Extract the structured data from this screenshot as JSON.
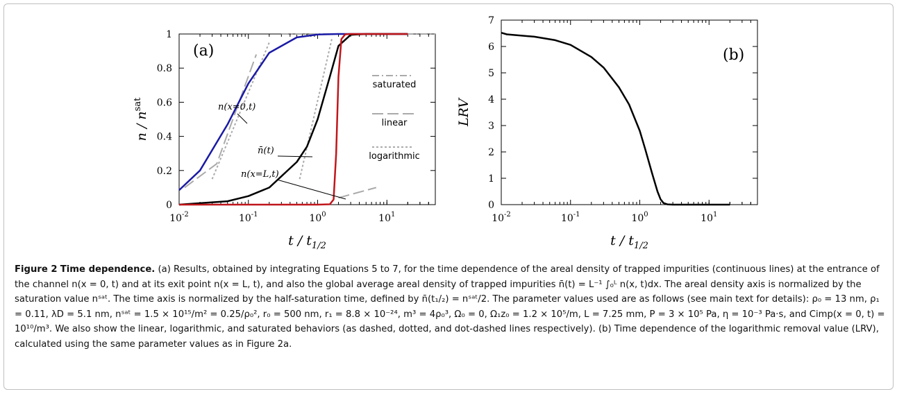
{
  "chart_data": [
    {
      "panel_label": "(a)",
      "type": "line",
      "x_scale": "log",
      "xlim": [
        0.01,
        50
      ],
      "ylim": [
        0,
        1
      ],
      "xlabel": "t / t1/2",
      "ylabel": "n / n^sat",
      "x_tick_labels": [
        "10-2",
        "10-1",
        "100",
        "101"
      ],
      "y_tick_labels": [
        "0",
        "0.2",
        "0.4",
        "0.6",
        "0.8",
        "1"
      ],
      "legend": [
        {
          "label": "saturated",
          "style": "dot-dashed"
        },
        {
          "label": "linear",
          "style": "dashed"
        },
        {
          "label": "logarithmic",
          "style": "dotted"
        }
      ],
      "annotations": [
        "n(x=0,t)",
        "n̄(t)",
        "n(x=L,t)"
      ],
      "series": [
        {
          "color": "#1a1aa6",
          "x": [
            0.01,
            0.02,
            0.05,
            0.1,
            0.2,
            0.5,
            1,
            2,
            5,
            20
          ],
          "values": [
            0.085,
            0.2,
            0.47,
            0.71,
            0.89,
            0.98,
            0.997,
            1,
            1,
            1
          ]
        },
        {
          "color": "#000000",
          "x": [
            0.01,
            0.05,
            0.1,
            0.2,
            0.5,
            0.7,
            1,
            1.5,
            2,
            3,
            5,
            20
          ],
          "values": [
            0.0,
            0.02,
            0.05,
            0.1,
            0.25,
            0.34,
            0.5,
            0.75,
            0.93,
            0.995,
            1,
            1
          ]
        },
        {
          "color": "#c0161b",
          "x": [
            0.01,
            1,
            1.5,
            1.7,
            1.85,
            2,
            2.2,
            2.5,
            3,
            20
          ],
          "values": [
            0,
            0,
            0.002,
            0.03,
            0.3,
            0.75,
            0.97,
            0.998,
            1,
            1
          ]
        }
      ]
    },
    {
      "panel_label": "(b)",
      "type": "line",
      "x_scale": "log",
      "xlim": [
        0.01,
        50
      ],
      "ylim": [
        0,
        7
      ],
      "xlabel": "t / t1/2",
      "ylabel": "LRV",
      "x_tick_labels": [
        "10-2",
        "10-1",
        "100",
        "101"
      ],
      "y_tick_labels": [
        "0",
        "1",
        "2",
        "3",
        "4",
        "5",
        "6",
        "7"
      ],
      "series": [
        {
          "color": "#000000",
          "x": [
            0.01,
            0.012,
            0.03,
            0.06,
            0.1,
            0.2,
            0.3,
            0.5,
            0.7,
            1,
            1.2,
            1.5,
            1.8,
            2,
            2.2,
            2.5,
            3,
            20
          ],
          "values": [
            6.52,
            6.46,
            6.37,
            6.24,
            6.06,
            5.6,
            5.2,
            4.45,
            3.8,
            2.8,
            2.1,
            1.2,
            0.5,
            0.2,
            0.06,
            0.01,
            0,
            0
          ]
        }
      ]
    }
  ],
  "caption": {
    "label": "Figure 2",
    "title": "Time dependence.",
    "text": "(a) Results, obtained by integrating Equations 5 to 7, for the time dependence of the areal density of trapped impurities (continuous lines) at the entrance of the channel n(x = 0, t) and at its exit point n(x = L, t), and also the global average areal density of trapped impurities n̄(t) = L⁻¹ ∫₀ᴸ n(x, t)dx. The areal density axis is normalized by the saturation value nˢᵃᵗ. The time axis is normalized by the half-saturation time, defined by n̄(t₁/₂) = nˢᵃᵗ/2. The parameter values used are as follows (see main text for details): ρ₀ = 13 nm, ρ₁ = 0.11, λD = 5.1 nm, nˢᵃᵗ = 1.5 × 10¹⁵/m² = 0.25/ρ₀², r₀ = 500 nm, r₁ = 8.8 × 10⁻²⁴, m³ = 4ρ₀³, Ω₀ = 0, Ω₁z₀ = 1.2 × 10⁵/m, L = 7.25 mm, P = 3 × 10⁵ Pa, η = 10⁻³ Pa·s, and Cimp(x = 0, t) = 10¹⁰/m³. We also show the linear, logarithmic, and saturated behaviors (as dashed, dotted, and dot-dashed lines respectively). (b) Time dependence of the logarithmic removal value (LRV), calculated using the same parameter values as in Figure 2a."
  }
}
